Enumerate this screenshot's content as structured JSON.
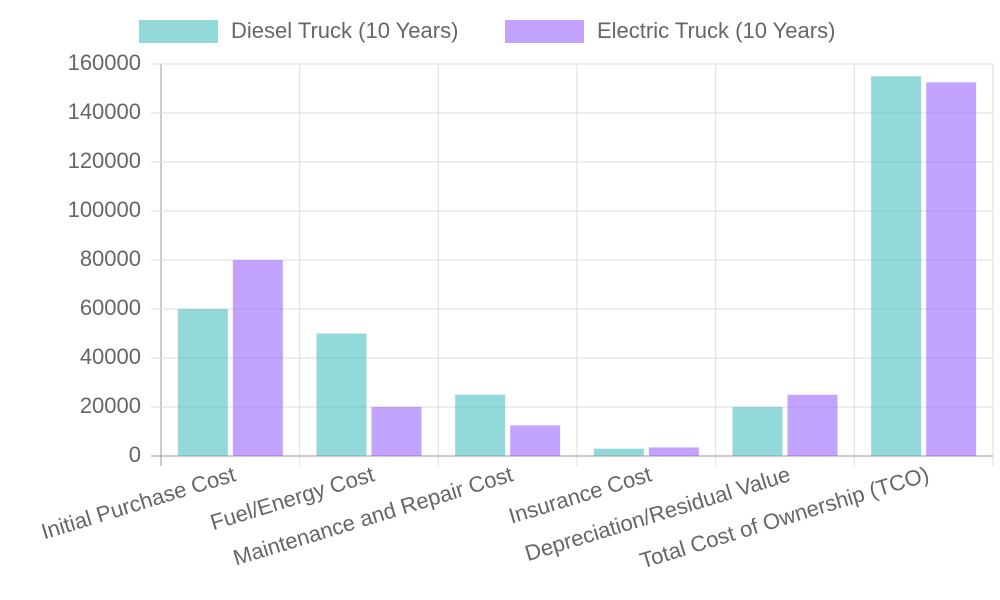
{
  "chart_data": {
    "type": "bar",
    "categories": [
      "Initial Purchase Cost",
      "Fuel/Energy Cost",
      "Maintenance and Repair Cost",
      "Insurance Cost",
      "Depreciation/Residual Value",
      "Total Cost of Ownership (TCO)"
    ],
    "series": [
      {
        "name": "Diesel Truck (10 Years)",
        "color": "rgba(75, 192, 192, 0.6)",
        "values": [
          60000,
          50000,
          25000,
          3000,
          20000,
          155000
        ]
      },
      {
        "name": "Electric Truck (10 Years)",
        "color": "rgba(153, 102, 255, 0.6)",
        "values": [
          80000,
          20000,
          12500,
          3500,
          25000,
          152500
        ]
      }
    ],
    "ylim": [
      0,
      160000
    ],
    "yticks": [
      0,
      20000,
      40000,
      60000,
      80000,
      100000,
      120000,
      140000,
      160000
    ],
    "grid": true
  }
}
